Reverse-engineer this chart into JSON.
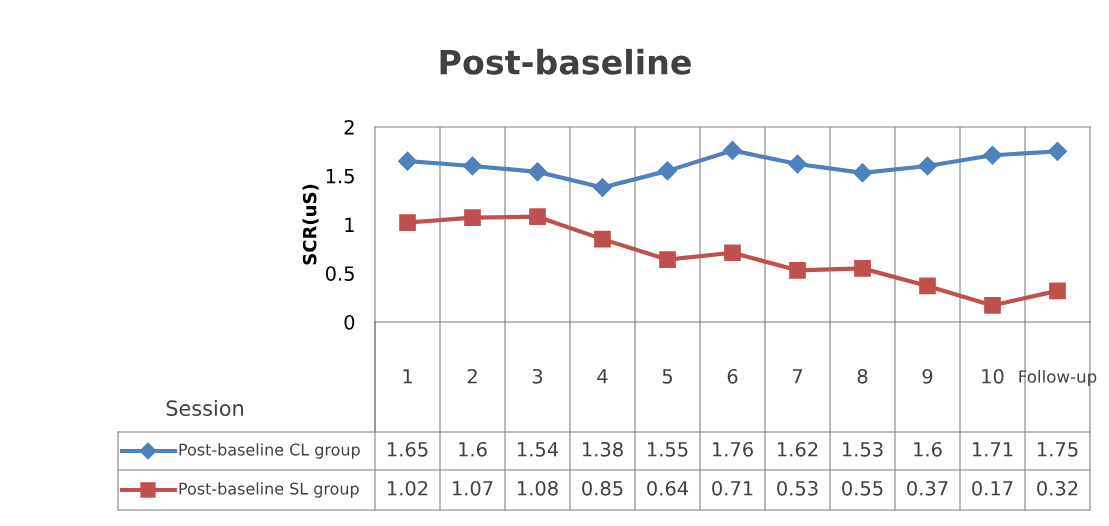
{
  "chart_data": {
    "type": "line",
    "title": "Post-baseline",
    "ylabel": "SCR(uS)",
    "xlabel": "Session",
    "categories": [
      "1",
      "2",
      "3",
      "4",
      "5",
      "6",
      "7",
      "8",
      "9",
      "10",
      "Follow-up"
    ],
    "series": [
      {
        "name": "Post-baseline CL group",
        "color": "#4f81bd",
        "marker": "diamond",
        "values": [
          1.65,
          1.6,
          1.54,
          1.38,
          1.55,
          1.76,
          1.62,
          1.53,
          1.6,
          1.71,
          1.75
        ]
      },
      {
        "name": "Post-baseline SL group",
        "color": "#c0504d",
        "marker": "square",
        "values": [
          1.02,
          1.07,
          1.08,
          0.85,
          0.64,
          0.71,
          0.53,
          0.55,
          0.37,
          0.17,
          0.32
        ]
      }
    ],
    "ylim": [
      0,
      2
    ],
    "yticks": [
      0,
      0.5,
      1,
      1.5,
      2
    ],
    "grid": "x",
    "legend": "bottom",
    "data_labels": true,
    "line_style": "solid"
  }
}
